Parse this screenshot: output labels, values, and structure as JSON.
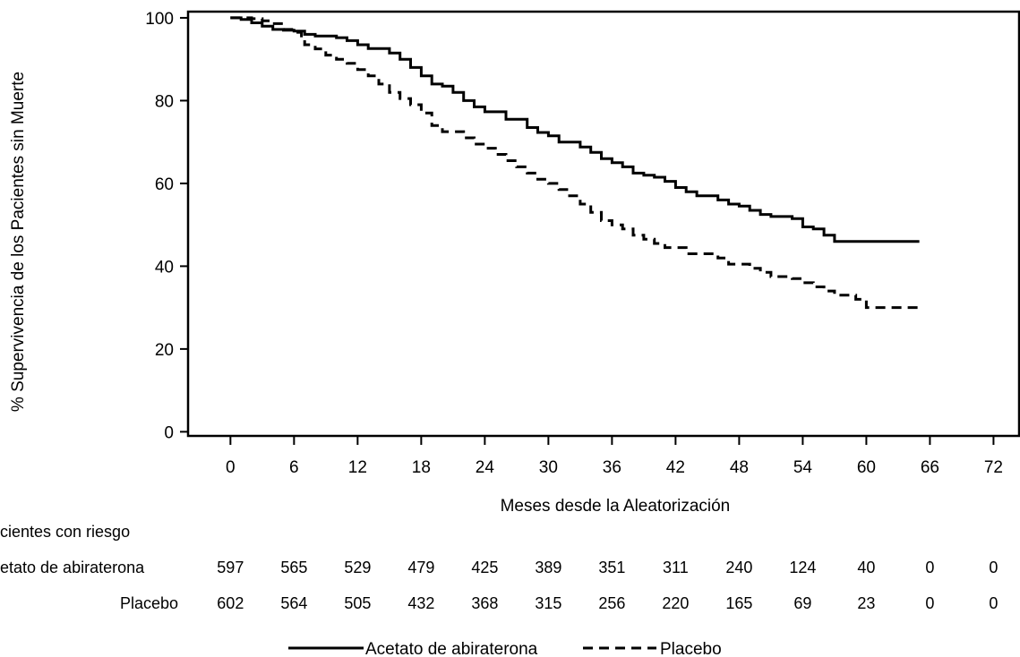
{
  "chart_data": {
    "type": "line",
    "ylabel": "% Supervivencia de los Pacientes sin Muerte",
    "xlabel": "Meses desde la Aleatorización",
    "xlim": [
      -4,
      74.5
    ],
    "ylim": [
      -1,
      101.5
    ],
    "x_ticks": [
      0,
      6,
      12,
      18,
      24,
      30,
      36,
      42,
      48,
      54,
      60,
      66,
      72
    ],
    "y_ticks": [
      0,
      20,
      40,
      60,
      80,
      100
    ],
    "grid": false,
    "legend_position": "bottom-center",
    "series": [
      {
        "name": "Acetato  de abiraterona",
        "style": "solid",
        "color": "#000000",
        "points": [
          [
            0,
            100
          ],
          [
            1,
            99.6
          ],
          [
            2,
            98.8
          ],
          [
            3,
            98
          ],
          [
            4,
            97.2
          ],
          [
            5,
            97
          ],
          [
            6,
            96.8
          ],
          [
            7,
            96
          ],
          [
            8,
            95.6
          ],
          [
            10,
            95.2
          ],
          [
            11,
            94.5
          ],
          [
            12,
            93.5
          ],
          [
            13,
            92.6
          ],
          [
            15,
            91.5
          ],
          [
            16,
            90
          ],
          [
            17,
            88
          ],
          [
            18,
            86
          ],
          [
            19,
            84
          ],
          [
            20,
            83.5
          ],
          [
            21,
            82
          ],
          [
            22,
            80
          ],
          [
            23,
            78.5
          ],
          [
            24,
            77.3
          ],
          [
            26,
            75.5
          ],
          [
            28,
            73.5
          ],
          [
            29,
            72.3
          ],
          [
            30,
            71.5
          ],
          [
            31,
            70
          ],
          [
            33,
            68.8
          ],
          [
            34,
            67.5
          ],
          [
            35,
            66
          ],
          [
            36,
            65
          ],
          [
            37,
            64
          ],
          [
            38,
            62.5
          ],
          [
            39,
            62
          ],
          [
            40,
            61.5
          ],
          [
            41,
            60.5
          ],
          [
            42,
            59
          ],
          [
            43,
            58
          ],
          [
            44,
            57
          ],
          [
            46,
            56
          ],
          [
            47,
            55
          ],
          [
            48,
            54.5
          ],
          [
            49,
            53.5
          ],
          [
            50,
            52.5
          ],
          [
            51,
            52
          ],
          [
            53,
            51.5
          ],
          [
            54,
            49.5
          ],
          [
            55,
            49
          ],
          [
            56,
            47.5
          ],
          [
            57,
            46
          ],
          [
            65,
            46
          ]
        ]
      },
      {
        "name": "Placebo",
        "style": "dashed",
        "color": "#000000",
        "points": [
          [
            0,
            100
          ],
          [
            2,
            99.8
          ],
          [
            3,
            99.3
          ],
          [
            4,
            98.6
          ],
          [
            5,
            97.2
          ],
          [
            6,
            96.5
          ],
          [
            6.7,
            95
          ],
          [
            7,
            93.5
          ],
          [
            8,
            92.5
          ],
          [
            9,
            91
          ],
          [
            10,
            90
          ],
          [
            11,
            89
          ],
          [
            12,
            87.5
          ],
          [
            13,
            86
          ],
          [
            14,
            84
          ],
          [
            15,
            82
          ],
          [
            16,
            80.5
          ],
          [
            17,
            79
          ],
          [
            18,
            77
          ],
          [
            19,
            74
          ],
          [
            20,
            72.5
          ],
          [
            22,
            71
          ],
          [
            23,
            69.5
          ],
          [
            24,
            68.5
          ],
          [
            25,
            67
          ],
          [
            26,
            65.5
          ],
          [
            27,
            64
          ],
          [
            28,
            62.5
          ],
          [
            29,
            61
          ],
          [
            30,
            60
          ],
          [
            31,
            58.5
          ],
          [
            32,
            57
          ],
          [
            33,
            55
          ],
          [
            34,
            53
          ],
          [
            35,
            51
          ],
          [
            36,
            50
          ],
          [
            37,
            49
          ],
          [
            38,
            47.5
          ],
          [
            39,
            46.5
          ],
          [
            40,
            45.5
          ],
          [
            41,
            44.5
          ],
          [
            43,
            43
          ],
          [
            46,
            42
          ],
          [
            47,
            40.5
          ],
          [
            49,
            39.5
          ],
          [
            50,
            38.5
          ],
          [
            51,
            37.5
          ],
          [
            53,
            37
          ],
          [
            54,
            36
          ],
          [
            55,
            35
          ],
          [
            56,
            34
          ],
          [
            57,
            33
          ],
          [
            59,
            32
          ],
          [
            60,
            30
          ],
          [
            65,
            30
          ]
        ]
      }
    ]
  },
  "risk_table": {
    "title": "cientes   con   riesgo",
    "rows": [
      {
        "label": "etato de abiraterona",
        "values": [
          "597",
          "565",
          "529",
          "479",
          "425",
          "389",
          "351",
          "311",
          "240",
          "124",
          "40",
          "0",
          "0"
        ]
      },
      {
        "label": "Placebo",
        "values": [
          "602",
          "564",
          "505",
          "432",
          "368",
          "315",
          "256",
          "220",
          "165",
          "69",
          "23",
          "0",
          "0"
        ]
      }
    ]
  }
}
